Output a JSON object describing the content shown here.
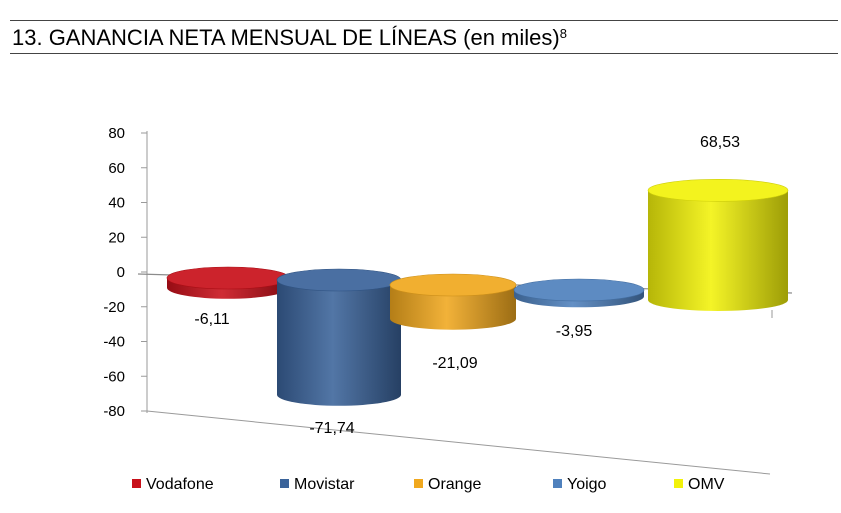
{
  "header": {
    "title": "13. GANANCIA NETA MENSUAL DE LÍNEAS (en miles)",
    "footnote": "8"
  },
  "chart_data": {
    "type": "bar",
    "style": "3d-cylinder",
    "title": "13. GANANCIA NETA MENSUAL DE LÍNEAS (en miles)",
    "xlabel": "",
    "ylabel": "",
    "categories": [
      "Vodafone",
      "Movistar",
      "Orange",
      "Yoigo",
      "OMV"
    ],
    "values": [
      -6.11,
      -71.74,
      -21.09,
      -3.95,
      68.53
    ],
    "value_labels": [
      "-6,11",
      "-71,74",
      "-21,09",
      "-3,95",
      "68,53"
    ],
    "colors": [
      "#c8101a",
      "#3a639a",
      "#f0a81e",
      "#4f81bd",
      "#f2f20a"
    ],
    "ylim": [
      -80,
      80
    ],
    "yticks": [
      80,
      60,
      40,
      20,
      0,
      -20,
      -40,
      -60,
      -80
    ],
    "ytick_labels": [
      "80",
      "60",
      "40",
      "20",
      "0",
      "-20",
      "-40",
      "-60",
      "-80"
    ],
    "grid": false,
    "legend": {
      "position": "bottom",
      "entries": [
        "Vodafone",
        "Movistar",
        "Orange",
        "Yoigo",
        "OMV"
      ]
    }
  }
}
